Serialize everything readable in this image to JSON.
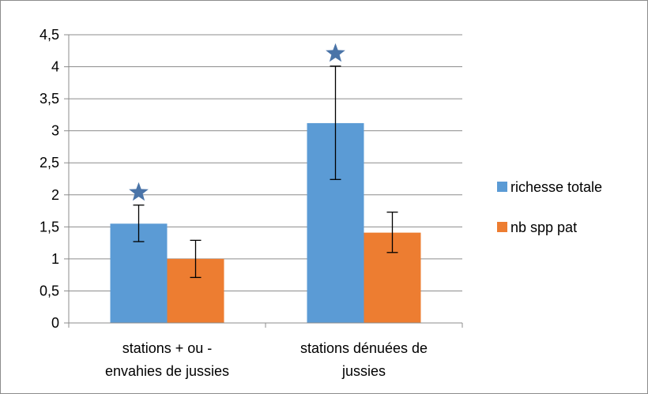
{
  "chart_data": {
    "type": "bar",
    "categories": [
      [
        "stations + ou -",
        "envahies de jussies"
      ],
      [
        "stations dénuées de",
        "jussies"
      ]
    ],
    "series": [
      {
        "name": "richesse totale",
        "color": "#5b9bd5",
        "values": [
          1.55,
          3.12
        ],
        "error": [
          [
            1.27,
            1.84
          ],
          [
            2.24,
            4.01
          ]
        ],
        "star": [
          true,
          true
        ]
      },
      {
        "name": "nb spp pat",
        "color": "#ed7d31",
        "values": [
          1.0,
          1.41
        ],
        "error": [
          [
            0.71,
            1.29
          ],
          [
            1.1,
            1.73
          ]
        ],
        "star": [
          false,
          false
        ]
      }
    ],
    "yticks": [
      "0",
      "0,5",
      "1",
      "1,5",
      "2",
      "2,5",
      "3",
      "3,5",
      "4",
      "4,5"
    ],
    "ylim": [
      0,
      4.5
    ],
    "grid": true,
    "legend": "right",
    "star_color": "#4a74a8"
  }
}
